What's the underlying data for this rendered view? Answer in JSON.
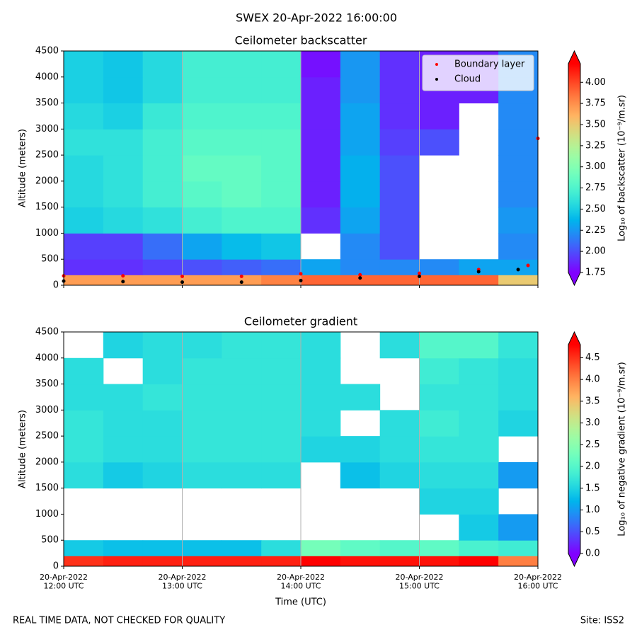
{
  "title": "SWEX 20-Apr-2022 16:00:00",
  "footer_left": "REAL TIME DATA, NOT CHECKED FOR QUALITY",
  "footer_right": "Site: ISS2",
  "chart_data": [
    {
      "type": "heatmap",
      "title": "Ceilometer backscatter",
      "ylabel": "Altitude (meters)",
      "colorbar_label": "Log₁₀ of backscatter (10⁻⁹/m.sr)",
      "colormap": "rainbow",
      "clim": [
        1.75,
        4.22
      ],
      "cbticks": [
        {
          "value": 1.75,
          "label": "1.75"
        },
        {
          "value": 2.0,
          "label": "2.00"
        },
        {
          "value": 2.25,
          "label": "2.25"
        },
        {
          "value": 2.5,
          "label": "2.50"
        },
        {
          "value": 2.75,
          "label": "2.75"
        },
        {
          "value": 3.0,
          "label": "3.00"
        },
        {
          "value": 3.25,
          "label": "3.25"
        },
        {
          "value": 3.5,
          "label": "3.50"
        },
        {
          "value": 3.75,
          "label": "3.75"
        },
        {
          "value": 4.0,
          "label": "4.00"
        }
      ],
      "xlim": [
        "2022-04-20 12:00",
        "2022-04-20 16:00"
      ],
      "xticks": [
        "2022-04-20 12:00",
        "2022-04-20 13:00",
        "2022-04-20 14:00",
        "2022-04-20 15:00",
        "2022-04-20 16:00"
      ],
      "ylim": [
        0,
        4500
      ],
      "yticks": [
        0,
        500,
        1000,
        1500,
        2000,
        2500,
        3000,
        3500,
        4000,
        4500
      ],
      "xgrid": true,
      "legend": "upper right",
      "x": [
        "2022-04-20 12:00",
        "2022-04-20 12:20",
        "2022-04-20 12:40",
        "2022-04-20 13:00",
        "2022-04-20 13:20",
        "2022-04-20 13:40",
        "2022-04-20 14:00",
        "2022-04-20 14:20",
        "2022-04-20 14:40",
        "2022-04-20 15:00",
        "2022-04-20 15:20",
        "2022-04-20 15:40"
      ],
      "y": [
        0,
        200,
        500,
        1000,
        1500,
        2000,
        2500,
        3000,
        3500,
        4000
      ],
      "z": [
        [
          3.7,
          3.7,
          3.7,
          3.7,
          3.7,
          3.8,
          3.9,
          3.9,
          3.9,
          3.9,
          3.9,
          3.5
        ],
        [
          1.9,
          1.9,
          1.95,
          2.0,
          2.05,
          2.1,
          2.3,
          2.2,
          2.2,
          2.2,
          2.3,
          2.3
        ],
        [
          1.95,
          1.95,
          2.1,
          2.3,
          2.4,
          2.45,
          null,
          2.2,
          2.0,
          null,
          null,
          2.2
        ],
        [
          2.5,
          2.55,
          2.6,
          2.7,
          2.75,
          2.75,
          1.9,
          2.3,
          2.0,
          null,
          null,
          2.25
        ],
        [
          2.55,
          2.6,
          2.7,
          2.8,
          2.85,
          2.8,
          1.85,
          2.35,
          2.0,
          null,
          null,
          2.2
        ],
        [
          2.55,
          2.6,
          2.7,
          2.85,
          2.85,
          2.8,
          1.85,
          2.35,
          2.0,
          null,
          null,
          2.2
        ],
        [
          2.6,
          2.6,
          2.7,
          2.8,
          2.8,
          2.8,
          1.85,
          2.3,
          1.95,
          2.0,
          null,
          2.2
        ],
        [
          2.55,
          2.5,
          2.65,
          2.75,
          2.75,
          2.75,
          1.85,
          2.3,
          1.9,
          1.85,
          null,
          2.2
        ],
        [
          2.5,
          2.45,
          2.55,
          2.7,
          2.7,
          2.7,
          1.85,
          2.25,
          1.9,
          1.85,
          1.85,
          2.2
        ],
        [
          2.5,
          2.45,
          2.55,
          2.7,
          2.7,
          2.7,
          1.8,
          2.25,
          1.9,
          1.85,
          1.85,
          2.2
        ]
      ],
      "series": [
        {
          "name": "Boundary layer",
          "color": "#ff0000",
          "x": [
            "2022-04-20 12:00",
            "2022-04-20 12:30",
            "2022-04-20 13:00",
            "2022-04-20 13:30",
            "2022-04-20 14:00",
            "2022-04-20 14:30",
            "2022-04-20 15:00",
            "2022-04-20 15:30",
            "2022-04-20 15:55",
            "2022-04-20 16:00"
          ],
          "values": [
            180,
            180,
            170,
            170,
            220,
            200,
            230,
            300,
            380,
            2820
          ]
        },
        {
          "name": "Cloud",
          "color": "#000000",
          "x": [
            "2022-04-20 12:00",
            "2022-04-20 12:30",
            "2022-04-20 13:00",
            "2022-04-20 13:30",
            "2022-04-20 14:00",
            "2022-04-20 14:30",
            "2022-04-20 15:00",
            "2022-04-20 15:30",
            "2022-04-20 15:50"
          ],
          "values": [
            80,
            70,
            60,
            60,
            90,
            140,
            170,
            260,
            300
          ]
        }
      ]
    },
    {
      "type": "heatmap",
      "title": "Ceilometer gradient",
      "ylabel": "Altitude (meters)",
      "xlabel": "Time (UTC)",
      "colorbar_label": "Log₁₀ of negative gradient (10⁻⁹/m.sr)",
      "colormap": "rainbow",
      "clim": [
        0,
        4.8
      ],
      "cbticks": [
        {
          "value": 0,
          "label": "0.0"
        },
        0.5,
        {
          "value": 1,
          "label": "1.0"
        },
        1.5,
        {
          "value": 2,
          "label": "2.0"
        },
        2.5,
        {
          "value": 3,
          "label": "3.0"
        },
        3.5,
        {
          "value": 4,
          "label": "4.0"
        },
        4.5
      ],
      "xlim": [
        "2022-04-20 12:00",
        "2022-04-20 16:00"
      ],
      "xticks": [
        {
          "value": "2022-04-20 12:00",
          "label": "20-Apr-2022\n12:00 UTC"
        },
        {
          "value": "2022-04-20 13:00",
          "label": "20-Apr-2022\n13:00 UTC"
        },
        {
          "value": "2022-04-20 14:00",
          "label": "20-Apr-2022\n14:00 UTC"
        },
        {
          "value": "2022-04-20 15:00",
          "label": "20-Apr-2022\n15:00 UTC"
        },
        {
          "value": "2022-04-20 16:00",
          "label": "20-Apr-2022\n16:00 UTC"
        }
      ],
      "ylim": [
        0,
        4500
      ],
      "yticks": [
        0,
        500,
        1000,
        1500,
        2000,
        2500,
        3000,
        3500,
        4000,
        4500
      ],
      "xgrid": true,
      "x": [
        "2022-04-20 12:00",
        "2022-04-20 12:20",
        "2022-04-20 12:40",
        "2022-04-20 13:00",
        "2022-04-20 13:20",
        "2022-04-20 13:40",
        "2022-04-20 14:00",
        "2022-04-20 14:20",
        "2022-04-20 14:40",
        "2022-04-20 15:00",
        "2022-04-20 15:20",
        "2022-04-20 15:40"
      ],
      "y": [
        0,
        200,
        500,
        1000,
        1500,
        2000,
        2500,
        3000,
        3500,
        4000
      ],
      "z": [
        [
          4.5,
          4.6,
          4.6,
          4.6,
          4.6,
          4.6,
          4.8,
          4.7,
          4.7,
          4.7,
          4.8,
          4.0
        ],
        [
          1.4,
          1.3,
          1.3,
          1.3,
          1.3,
          1.6,
          2.3,
          2.1,
          2.0,
          2.1,
          1.9,
          1.8
        ],
        [
          null,
          null,
          null,
          null,
          null,
          null,
          null,
          null,
          null,
          null,
          1.4,
          1.0
        ],
        [
          null,
          null,
          null,
          null,
          null,
          null,
          null,
          null,
          null,
          1.5,
          1.5,
          null
        ],
        [
          1.6,
          1.4,
          1.5,
          1.6,
          1.6,
          1.6,
          null,
          1.3,
          1.5,
          1.6,
          1.6,
          1.0
        ],
        [
          1.7,
          1.6,
          1.6,
          1.7,
          1.7,
          1.7,
          1.5,
          1.5,
          1.6,
          1.7,
          1.7,
          null
        ],
        [
          1.7,
          1.6,
          1.6,
          1.7,
          1.7,
          1.7,
          1.6,
          null,
          1.6,
          1.8,
          1.7,
          1.5
        ],
        [
          1.6,
          1.6,
          1.7,
          1.7,
          1.7,
          1.7,
          1.6,
          1.6,
          null,
          1.7,
          1.7,
          1.6
        ],
        [
          1.6,
          null,
          1.6,
          1.7,
          1.7,
          1.7,
          1.6,
          null,
          null,
          1.8,
          1.7,
          1.6
        ],
        [
          null,
          1.5,
          1.6,
          1.6,
          1.7,
          1.7,
          1.6,
          null,
          1.6,
          2.0,
          2.0,
          1.7
        ]
      ]
    }
  ]
}
